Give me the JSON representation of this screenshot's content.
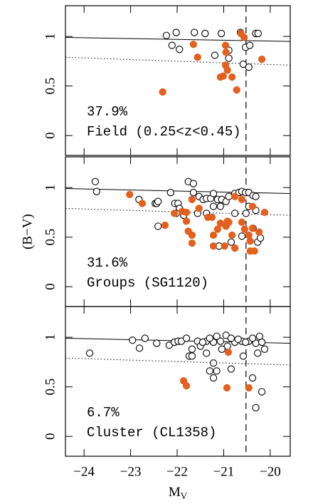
{
  "chart_data": [
    {
      "type": "scatter",
      "annotations": [
        "37.9%",
        "Field (0.25<z<0.45)"
      ],
      "xlim": [
        -24.4,
        -19.57
      ],
      "ylim": [
        -0.2,
        1.31
      ],
      "xticks": [
        -24,
        -23,
        -22,
        -21,
        -20
      ],
      "yticks": [
        0,
        0.5,
        1
      ],
      "solid_line": {
        "x": [
          -24.4,
          -19.57
        ],
        "y": [
          0.99,
          0.95
        ]
      },
      "dotted_line": {
        "x": [
          -24.4,
          -19.57
        ],
        "y": [
          0.79,
          0.71
        ]
      },
      "limit_x": -20.52,
      "series": [
        {
          "marker": "open",
          "color": "#000000",
          "x": [
            -22.23,
            -22.02,
            -21.63,
            -21.4,
            -21.05,
            -20.64,
            -20.31,
            -20.26,
            -22.11,
            -21.95,
            -21.19,
            -20.89,
            -20.89,
            -20.53,
            -20.44,
            -20.58,
            -20.46
          ],
          "values": [
            1.01,
            1.04,
            1.04,
            1.03,
            1.03,
            1.04,
            1.03,
            1.03,
            0.91,
            0.87,
            0.81,
            0.86,
            0.78,
            0.89,
            0.91,
            0.72,
            0.69
          ]
        },
        {
          "marker": "filled",
          "color": "#e3611e",
          "x": [
            -21.65,
            -21.56,
            -20.96,
            -20.95,
            -20.63,
            -20.56,
            -20.96,
            -20.92,
            -21.01,
            -20.82,
            -21.07,
            -20.72,
            -22.31,
            -20.18
          ],
          "values": [
            0.92,
            0.79,
            0.91,
            0.84,
            1.03,
            0.99,
            0.71,
            0.66,
            0.6,
            0.59,
            0.59,
            0.46,
            0.44,
            0.77
          ]
        }
      ]
    },
    {
      "type": "scatter",
      "annotations": [
        "31.6%",
        "Groups (SG1120)"
      ],
      "ylabel": "(B−V)",
      "xlim": [
        -24.4,
        -19.57
      ],
      "ylim": [
        -0.2,
        1.31
      ],
      "xticks": [
        -24,
        -23,
        -22,
        -21,
        -20
      ],
      "yticks": [
        0,
        0.5,
        1
      ],
      "solid_line": {
        "x": [
          -24.4,
          -19.57
        ],
        "y": [
          0.99,
          0.94
        ]
      },
      "dotted_line": {
        "x": [
          -24.4,
          -19.57
        ],
        "y": [
          0.79,
          0.72
        ]
      },
      "limit_x": -20.52,
      "series": [
        {
          "marker": "open",
          "color": "#000000",
          "x": [
            -23.76,
            -23.73,
            -22.82,
            -22.47,
            -22.44,
            -22.41,
            -22.05,
            -21.98,
            -21.95,
            -21.76,
            -21.65,
            -21.65,
            -21.53,
            -21.44,
            -21.37,
            -21.28,
            -21.22,
            -21.13,
            -21.04,
            -20.95,
            -20.89,
            -20.76,
            -20.67,
            -20.61,
            -20.53,
            -20.46,
            -20.37,
            -20.31,
            -22.02,
            -21.86,
            -21.56,
            -21.37,
            -21.22,
            -21.07,
            -20.76,
            -20.46,
            -20.31,
            -22.41,
            -21.1,
            -20.84,
            -20.61,
            -20.37,
            -20.27,
            -20.21,
            -20.52,
            -22.14
          ],
          "values": [
            1.06,
            0.96,
            0.88,
            0.84,
            0.84,
            0.86,
            0.84,
            0.84,
            0.79,
            1.06,
            1.04,
            0.95,
            0.91,
            0.88,
            0.89,
            0.89,
            0.94,
            0.88,
            0.88,
            0.86,
            0.91,
            0.94,
            0.95,
            0.96,
            0.95,
            0.95,
            0.92,
            0.91,
            0.74,
            0.72,
            0.74,
            0.74,
            0.81,
            0.81,
            0.74,
            0.81,
            0.77,
            0.61,
            0.41,
            0.45,
            0.51,
            0.59,
            0.45,
            0.49,
            0.74,
            0.95
          ]
        },
        {
          "marker": "filled",
          "color": "#e3611e",
          "x": [
            -23.02,
            -22.75,
            -22.26,
            -22.06,
            -21.89,
            -21.8,
            -21.76,
            -21.68,
            -21.68,
            -21.8,
            -21.68,
            -21.53,
            -21.34,
            -21.25,
            -21.22,
            -21.13,
            -21.07,
            -20.95,
            -20.89,
            -20.82,
            -21.22,
            -20.98,
            -20.76,
            -20.61,
            -20.55,
            -20.46,
            -20.43,
            -20.38,
            -20.24,
            -20.12,
            -20.76,
            -20.61,
            -20.92,
            -20.43,
            -20.34,
            -20.38
          ],
          "values": [
            0.93,
            0.84,
            0.62,
            0.74,
            0.76,
            0.66,
            0.56,
            0.52,
            0.44,
            0.75,
            0.88,
            0.79,
            0.7,
            0.7,
            0.52,
            0.58,
            0.64,
            0.61,
            0.65,
            0.52,
            0.41,
            0.41,
            0.39,
            0.65,
            0.58,
            0.52,
            0.46,
            0.59,
            0.55,
            0.75,
            0.91,
            0.88,
            0.66,
            0.36,
            0.36,
            0.81
          ]
        }
      ]
    },
    {
      "type": "scatter",
      "annotations": [
        "6.7%",
        "Cluster (CL1358)"
      ],
      "xlabel": "M",
      "xlabel_sub": "V",
      "xlim": [
        -24.4,
        -19.57
      ],
      "ylim": [
        -0.2,
        1.31
      ],
      "xticks": [
        {
          "value": -24,
          "label": "−24"
        },
        {
          "value": -23,
          "label": "−23"
        },
        {
          "value": -22,
          "label": "−22"
        },
        {
          "value": -21,
          "label": "−21"
        },
        {
          "value": -20,
          "label": "−20"
        }
      ],
      "yticks": [
        0,
        0.5,
        1
      ],
      "solid_line": {
        "x": [
          -24.4,
          -19.57
        ],
        "y": [
          0.99,
          0.94
        ]
      },
      "dotted_line": {
        "x": [
          -24.4,
          -19.57
        ],
        "y": [
          0.79,
          0.72
        ]
      },
      "limit_x": -20.52,
      "series": [
        {
          "marker": "open",
          "color": "#000000",
          "x": [
            -23.88,
            -22.96,
            -22.69,
            -22.81,
            -22.44,
            -22.17,
            -22.06,
            -21.98,
            -21.91,
            -21.8,
            -21.74,
            -21.68,
            -21.56,
            -21.5,
            -21.37,
            -21.22,
            -21.07,
            -20.95,
            -20.92,
            -20.76,
            -20.61,
            -20.46,
            -20.31,
            -20.18,
            -20.12,
            -21.45,
            -21.3,
            -21.15,
            -20.84,
            -20.69,
            -20.53,
            -20.38,
            -20.23,
            -21.37,
            -21.22,
            -21.15,
            -21.22,
            -20.84,
            -20.38,
            -20.18,
            -20.31,
            -21.3,
            -21.68,
            -21.04,
            -20.58,
            -20.27
          ],
          "values": [
            0.84,
            0.97,
            0.99,
            0.89,
            0.94,
            0.92,
            0.95,
            0.96,
            0.96,
            0.99,
            0.81,
            0.81,
            0.96,
            0.91,
            0.96,
            0.95,
            0.96,
            1.02,
            0.91,
            0.95,
            0.96,
            0.96,
            0.94,
            0.95,
            0.88,
            0.95,
            0.99,
            1.01,
            0.99,
            0.98,
            0.95,
            0.99,
            1.01,
            0.84,
            0.74,
            0.66,
            0.59,
            0.68,
            0.59,
            0.45,
            0.29,
            0.66,
            0.88,
            0.88,
            0.81,
            0.84
          ]
        },
        {
          "marker": "filled",
          "color": "#e3611e",
          "x": [
            -21.86,
            -21.8,
            -20.93,
            -20.9,
            -20.46
          ],
          "values": [
            0.56,
            0.51,
            0.49,
            0.85,
            0.49
          ]
        }
      ]
    }
  ]
}
